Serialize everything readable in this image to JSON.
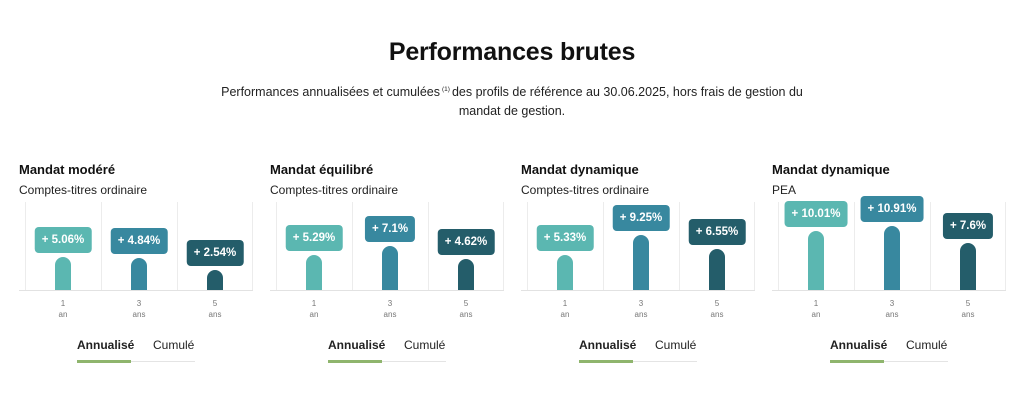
{
  "page": {
    "title": "Performances brutes",
    "subtitle_part1": "Performances annualisées et cumulées",
    "footnote": "(1)",
    "subtitle_part2": "des profils de référence au 30.06.2025, hors frais de gestion du mandat de gestion."
  },
  "colors": {
    "one_year": "#5bb7b1",
    "three_years": "#38889f",
    "five_years": "#245d6a"
  },
  "cards": [
    {
      "title": "Mandat modéré",
      "subtitle": "Comptes-titres ordinaire",
      "values": [
        5.06,
        4.84,
        2.54
      ],
      "labels": [
        "+ 5.06%",
        "+ 4.84%",
        "+ 2.54%"
      ],
      "tab_active": "Annualisé",
      "tab_other": "Cumulé"
    },
    {
      "title": "Mandat équilibré",
      "subtitle": "Comptes-titres ordinaire",
      "values": [
        5.29,
        7.1,
        4.62
      ],
      "labels": [
        "+ 5.29%",
        "+ 7.1%",
        "+ 4.62%"
      ],
      "tab_active": "Annualisé",
      "tab_other": "Cumulé"
    },
    {
      "title": "Mandat dynamique",
      "subtitle": "Comptes-titres ordinaire",
      "values": [
        5.33,
        9.25,
        6.55
      ],
      "labels": [
        "+ 5.33%",
        "+ 9.25%",
        "+ 6.55%"
      ],
      "tab_active": "Annualisé",
      "tab_other": "Cumulé"
    },
    {
      "title": "Mandat dynamique",
      "subtitle": "PEA",
      "values": [
        10.01,
        10.91,
        7.6
      ],
      "labels": [
        "+ 10.01%",
        "+ 10.91%",
        "+ 7.6%"
      ],
      "tab_active": "Annualisé",
      "tab_other": "Cumulé"
    }
  ],
  "periods": [
    {
      "num": "1",
      "unit": "an"
    },
    {
      "num": "3",
      "unit": "ans"
    },
    {
      "num": "5",
      "unit": "ans"
    }
  ],
  "chart_data": [
    {
      "type": "bar",
      "title": "Mandat modéré",
      "categories": [
        "1 an",
        "3 ans",
        "5 ans"
      ],
      "values": [
        5.06,
        4.84,
        2.54
      ]
    },
    {
      "type": "bar",
      "title": "Mandat équilibré",
      "categories": [
        "1 an",
        "3 ans",
        "5 ans"
      ],
      "values": [
        5.29,
        7.1,
        4.62
      ]
    },
    {
      "type": "bar",
      "title": "Mandat dynamique",
      "categories": [
        "1 an",
        "3 ans",
        "5 ans"
      ],
      "values": [
        5.33,
        9.25,
        6.55
      ]
    },
    {
      "type": "bar",
      "title": "Mandat dynamique",
      "categories": [
        "1 an",
        "3 ans",
        "5 ans"
      ],
      "values": [
        10.01,
        10.91,
        7.6
      ]
    }
  ]
}
